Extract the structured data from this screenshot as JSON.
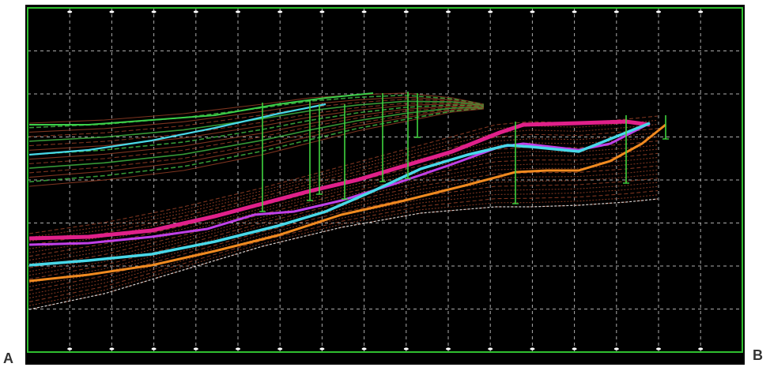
{
  "profile": {
    "start_label": "A",
    "end_label": "B"
  },
  "colors": {
    "background": "#000000",
    "frame": "#2fbf2f",
    "grid": "#d8d8d8",
    "horizon_magenta": "#e0208a",
    "horizon_violet": "#c040e8",
    "horizon_cyan": "#48d8e8",
    "horizon_orange": "#f08a20",
    "horizon_green": "#3ca83c",
    "horizon_brown": "#8a3a22",
    "horizon_white": "#cfcfcf",
    "well_marker": "#3fd43f"
  },
  "legend": []
}
